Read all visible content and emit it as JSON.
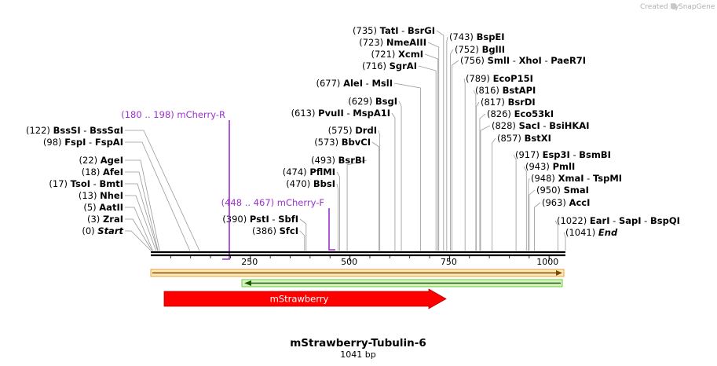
{
  "branding": {
    "created_by": "Created by",
    "brand": "SnapGene"
  },
  "sequence": {
    "name": "mStrawberry-Tubulin-6",
    "length_label": "1041 bp",
    "length": 1041
  },
  "ruler": {
    "ticks": [
      250,
      500,
      750,
      1000
    ]
  },
  "left_sites": [
    {
      "pos": "(0)",
      "name": "Start",
      "italic": true
    },
    {
      "pos": "(3)",
      "name": "ZraI"
    },
    {
      "pos": "(5)",
      "name": "AatII"
    },
    {
      "pos": "(13)",
      "name": "NheI"
    },
    {
      "pos": "(17)",
      "name": "TsoI",
      "name2": "BmtI"
    },
    {
      "pos": "(18)",
      "name": "AfeI"
    },
    {
      "pos": "(22)",
      "name": "AgeI"
    },
    {
      "pos": "(98)",
      "name": "FspI",
      "name2": "FspAI"
    },
    {
      "pos": "(122)",
      "name": "BssSI",
      "name2": "BssSαI"
    }
  ],
  "mid_sites": [
    {
      "pos": "(386)",
      "name": "SfcI"
    },
    {
      "pos": "(390)",
      "name": "PstI",
      "name2": "SbfI"
    },
    {
      "pos": "(470)",
      "name": "BbsI"
    },
    {
      "pos": "(474)",
      "name": "PflMI"
    },
    {
      "pos": "(493)",
      "name": "BsrBI"
    },
    {
      "pos": "(573)",
      "name": "BbvCI"
    },
    {
      "pos": "(575)",
      "name": "DrdI"
    },
    {
      "pos": "(613)",
      "name": "PvuII",
      "name2": "MspA1I"
    },
    {
      "pos": "(629)",
      "name": "BsgI"
    },
    {
      "pos": "(677)",
      "name": "AleI",
      "name2": "MslI"
    },
    {
      "pos": "(716)",
      "name": "SgrAI"
    },
    {
      "pos": "(721)",
      "name": "XcmI"
    },
    {
      "pos": "(723)",
      "name": "NmeAIII"
    },
    {
      "pos": "(735)",
      "name": "TatI",
      "name2": "BsrGI"
    }
  ],
  "right_sites": [
    {
      "pos": "(743)",
      "name": "BspEI"
    },
    {
      "pos": "(752)",
      "name": "BglII"
    },
    {
      "pos": "(756)",
      "name": "SmlI",
      "name2": "XhoI",
      "name3": "PaeR7I"
    },
    {
      "pos": "(789)",
      "name": "EcoP15I"
    },
    {
      "pos": "(816)",
      "name": "BstAPI"
    },
    {
      "pos": "(817)",
      "name": "BsrDI"
    },
    {
      "pos": "(826)",
      "name": "Eco53kI"
    },
    {
      "pos": "(828)",
      "name": "SacI",
      "name2": "BsiHKAI"
    },
    {
      "pos": "(857)",
      "name": "BstXI"
    },
    {
      "pos": "(917)",
      "name": "Esp3I",
      "name2": "BsmBI"
    },
    {
      "pos": "(943)",
      "name": "PmlI"
    },
    {
      "pos": "(948)",
      "name": "XmaI",
      "name2": "TspMI"
    },
    {
      "pos": "(950)",
      "name": "SmaI"
    },
    {
      "pos": "(963)",
      "name": "AccI"
    },
    {
      "pos": "(1022)",
      "name": "EarI",
      "name2": "SapI",
      "name3": "BspQI"
    },
    {
      "pos": "(1041)",
      "name": "End",
      "italic": true
    }
  ],
  "primers": [
    {
      "range": "(180 .. 198)",
      "name": "mCherry-R"
    },
    {
      "range": "(448 .. 467)",
      "name": "mCherry-F"
    }
  ],
  "features": [
    {
      "name": "mStrawberry",
      "color": "#ff0000"
    }
  ],
  "colors": {
    "primer": "#9933cc",
    "orf_forward": "#e8a33c",
    "orf_reverse": "#66cc33",
    "feature": "#ff0000",
    "site_line": "#999999"
  }
}
